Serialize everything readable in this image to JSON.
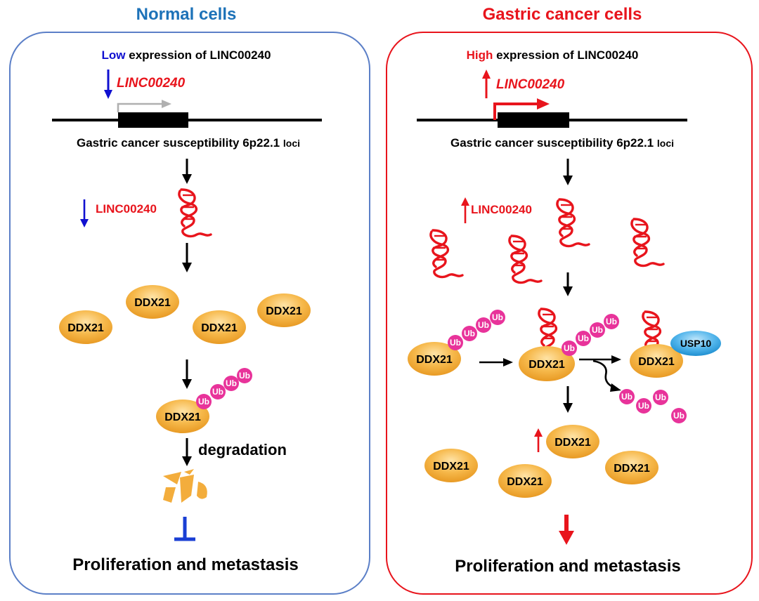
{
  "colors": {
    "normal_title": "#1d72b8",
    "cancer_title": "#e8141c",
    "low_word": "#1010d0",
    "high_word": "#e8141c",
    "gene_red": "#e8141c",
    "blue_arrow": "#1010d0",
    "red_arrow": "#e8141c",
    "left_border": "#5b7fc7",
    "right_border": "#e8141c",
    "protein_fill": "#f3ad3c",
    "ub_fill": "#e8339a",
    "usp_fill": "#3fa7e3",
    "inhibit_blue": "#1a3fd4"
  },
  "left": {
    "title": "Normal cells",
    "expression_level": "Low",
    "expression_rest": " expression of LINC00240",
    "gene_label": "LINC00240",
    "locus_main": "Gastric cancer susceptibility 6p22.1 ",
    "locus_small": "loci",
    "rna_label": "LINC00240",
    "proteins": [
      "DDX21",
      "DDX21",
      "DDX21",
      "DDX21"
    ],
    "ub_protein": "DDX21",
    "ub_tags": [
      "Ub",
      "Ub",
      "Ub",
      "Ub"
    ],
    "degradation": "degradation",
    "outcome": "Proliferation and metastasis"
  },
  "right": {
    "title": "Gastric cancer cells",
    "expression_level": "High",
    "expression_rest": " expression of LINC00240",
    "gene_label": "LINC00240",
    "locus_main": "Gastric cancer susceptibility 6p22.1 ",
    "locus_small": "loci",
    "rna_label": "LINC00240",
    "ub_protein_left": "DDX21",
    "ub_tags_left": [
      "Ub",
      "Ub",
      "Ub",
      "Ub"
    ],
    "center_protein": "DDX21",
    "ub_tags_center": [
      "Ub",
      "Ub",
      "Ub",
      "Ub"
    ],
    "usp_protein": "DDX21",
    "usp_label": "USP10",
    "free_ub": [
      "Ub",
      "Ub",
      "Ub",
      "Ub"
    ],
    "proteins_bottom": [
      "DDX21",
      "DDX21",
      "DDX21",
      "DDX21"
    ],
    "outcome": "Proliferation and metastasis"
  }
}
